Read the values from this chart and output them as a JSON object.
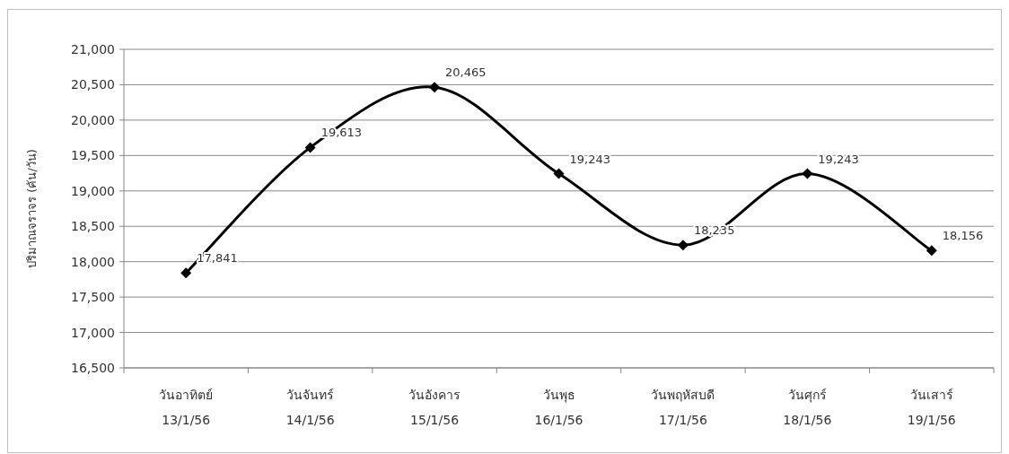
{
  "chart_data": {
    "type": "line",
    "ylabel": "ปริมาณจราจร (คัน/วัน)",
    "categories": [
      "วันอาทิตย์\n13/1/56",
      "วันจันทร์\n14/1/56",
      "วันอังคาร\n15/1/56",
      "วันพุธ\n16/1/56",
      "วันพฤหัสบดี\n17/1/56",
      "วันศุกร์\n18/1/56",
      "วันเสาร์\n19/1/56"
    ],
    "series": [
      {
        "color": "#000000",
        "values": [
          17841,
          19613,
          20465,
          19243,
          18235,
          19243,
          18156
        ],
        "value_labels": [
          "17,841",
          "19,613",
          "20,465",
          "19,243",
          "18,235",
          "19,243",
          "18,156"
        ]
      }
    ],
    "ylim": [
      16500,
      21000
    ],
    "yticks": [
      {
        "value": 16500,
        "label": "16,500"
      },
      {
        "value": 17000,
        "label": "17,000"
      },
      {
        "value": 17500,
        "label": "17,500"
      },
      {
        "value": 18000,
        "label": "18,000"
      },
      {
        "value": 18500,
        "label": "18,500"
      },
      {
        "value": 19000,
        "label": "19,000"
      },
      {
        "value": 19500,
        "label": "19,500"
      },
      {
        "value": 20000,
        "label": "20,000"
      },
      {
        "value": 20500,
        "label": "20,500"
      },
      {
        "value": 21000,
        "label": "21,000"
      }
    ],
    "grid": "y",
    "marker": "diamond",
    "line_style": "solid"
  }
}
